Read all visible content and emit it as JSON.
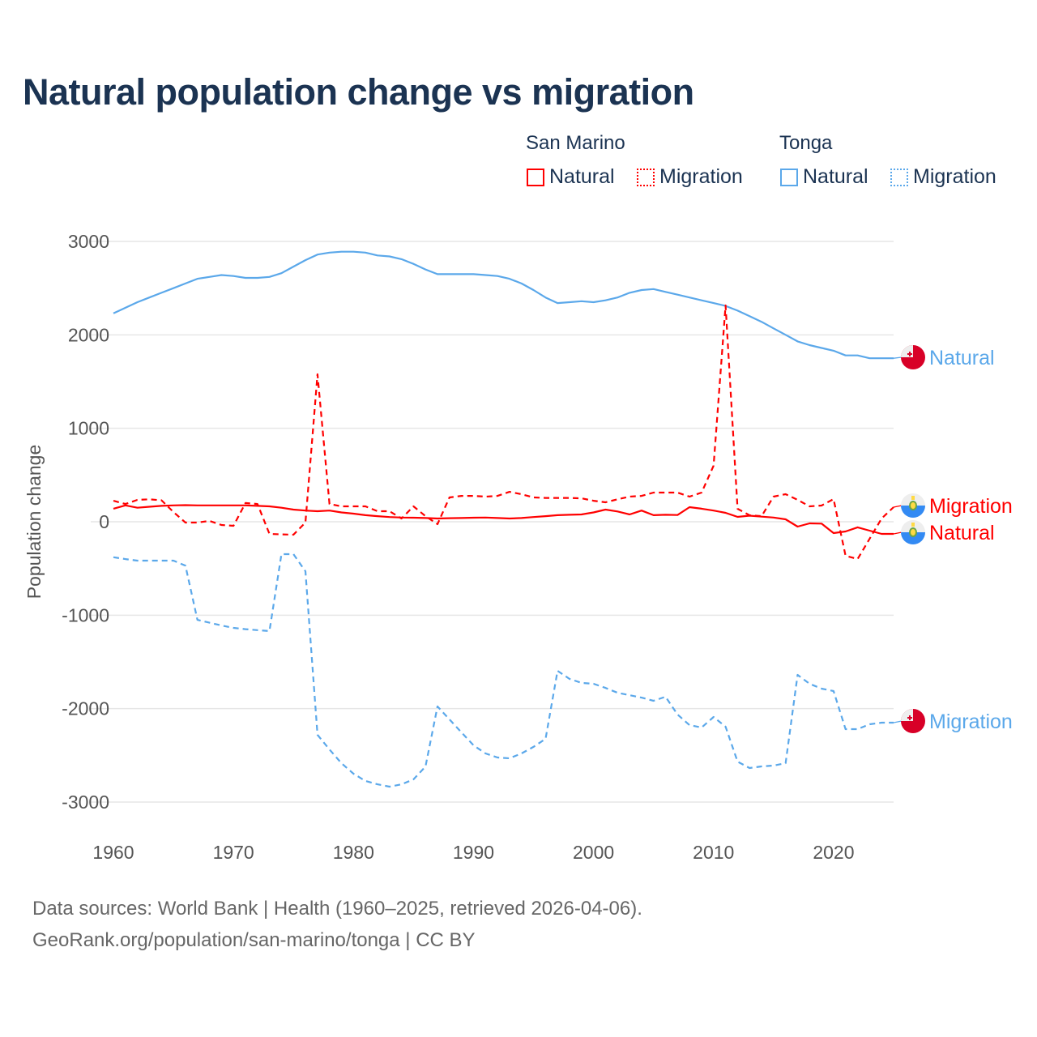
{
  "colors": {
    "san_marino": "#ff0000",
    "tonga": "#5ba8ea",
    "title": "#1b3352",
    "grid": "#e6e6e6",
    "axis_text": "#555555"
  },
  "legend": {
    "groups": [
      {
        "name": "San Marino",
        "items": [
          "Natural",
          "Migration"
        ]
      },
      {
        "name": "Tonga",
        "items": [
          "Natural",
          "Migration"
        ]
      }
    ]
  },
  "footer": {
    "line1": "Data sources: World Bank | Health (1960–2025, retrieved 2026-04-06).",
    "line2": "GeoRank.org/population/san-marino/tonga | CC BY"
  },
  "chart_data": {
    "type": "line",
    "title": "Natural population change vs migration",
    "xlabel": "",
    "ylabel": "Population change",
    "xlim": [
      1960,
      2025
    ],
    "ylim": [
      -3000,
      3000
    ],
    "x_ticks": [
      1960,
      1970,
      1980,
      1990,
      2000,
      2010,
      2020
    ],
    "y_ticks": [
      3000,
      2000,
      1000,
      0,
      -1000,
      -2000,
      -3000
    ],
    "grid": true,
    "legend_position": "top-right",
    "x_start": 1960,
    "series": [
      {
        "name": "Tonga Natural",
        "country": "Tonga",
        "kind": "Natural",
        "end_label": "Natural",
        "dashed": false,
        "color": "#5ba8ea",
        "values": [
          2230,
          2290,
          2350,
          2400,
          2450,
          2500,
          2550,
          2600,
          2620,
          2640,
          2630,
          2610,
          2610,
          2620,
          2660,
          2730,
          2800,
          2860,
          2880,
          2890,
          2890,
          2880,
          2850,
          2840,
          2810,
          2760,
          2700,
          2650,
          2650,
          2650,
          2650,
          2640,
          2630,
          2600,
          2550,
          2480,
          2400,
          2340,
          2350,
          2360,
          2350,
          2370,
          2400,
          2450,
          2480,
          2490,
          2460,
          2430,
          2400,
          2370,
          2340,
          2310,
          2260,
          2200,
          2140,
          2070,
          2000,
          1930,
          1890,
          1860,
          1830,
          1780,
          1780,
          1750,
          1750,
          1750
        ]
      },
      {
        "name": "Tonga Migration",
        "country": "Tonga",
        "kind": "Migration",
        "end_label": "Migration",
        "dashed": true,
        "color": "#5ba8ea",
        "values": [
          -380,
          -400,
          -416,
          -416,
          -416,
          -416,
          -470,
          -1050,
          -1080,
          -1110,
          -1136,
          -1150,
          -1160,
          -1170,
          -347,
          -347,
          -530,
          -2280,
          -2437,
          -2585,
          -2697,
          -2775,
          -2810,
          -2835,
          -2810,
          -2757,
          -2620,
          -1977,
          -2116,
          -2254,
          -2393,
          -2480,
          -2523,
          -2532,
          -2480,
          -2410,
          -2324,
          -1595,
          -1682,
          -1725,
          -1734,
          -1778,
          -1830,
          -1856,
          -1882,
          -1916,
          -1873,
          -2064,
          -2176,
          -2202,
          -2090,
          -2194,
          -2567,
          -2636,
          -2619,
          -2610,
          -2584,
          -1639,
          -1734,
          -1786,
          -1812,
          -2220,
          -2220,
          -2168,
          -2150,
          -2150
        ]
      },
      {
        "name": "San Marino Natural",
        "country": "San Marino",
        "kind": "Natural",
        "end_label": "Natural",
        "dashed": false,
        "color": "#ff0000",
        "values": [
          140,
          175,
          150,
          160,
          170,
          175,
          178,
          175,
          175,
          175,
          175,
          175,
          170,
          165,
          150,
          130,
          120,
          113,
          120,
          100,
          87,
          70,
          60,
          50,
          45,
          43,
          40,
          35,
          38,
          40,
          43,
          45,
          40,
          35,
          40,
          50,
          60,
          70,
          75,
          78,
          100,
          130,
          110,
          78,
          120,
          70,
          75,
          72,
          156,
          140,
          120,
          95,
          52,
          65,
          55,
          45,
          26,
          -52,
          -17,
          -20,
          -121,
          -104,
          -60,
          -95,
          -130,
          -130
        ]
      },
      {
        "name": "San Marino Migration",
        "country": "San Marino",
        "kind": "Migration",
        "end_label": "Migration",
        "dashed": true,
        "color": "#ff0000",
        "values": [
          225,
          190,
          234,
          240,
          230,
          104,
          -9,
          -9,
          9,
          -35,
          -43,
          200,
          190,
          -130,
          -135,
          -139,
          -9,
          1578,
          190,
          165,
          165,
          165,
          113,
          113,
          35,
          165,
          60,
          -26,
          260,
          277,
          277,
          269,
          277,
          320,
          295,
          260,
          255,
          255,
          255,
          251,
          225,
          208,
          240,
          269,
          277,
          312,
          312,
          312,
          269,
          312,
          600,
          2315,
          139,
          69,
          60,
          269,
          295,
          234,
          165,
          173,
          243,
          -364,
          -399,
          -182,
          35,
          156
        ]
      }
    ]
  }
}
